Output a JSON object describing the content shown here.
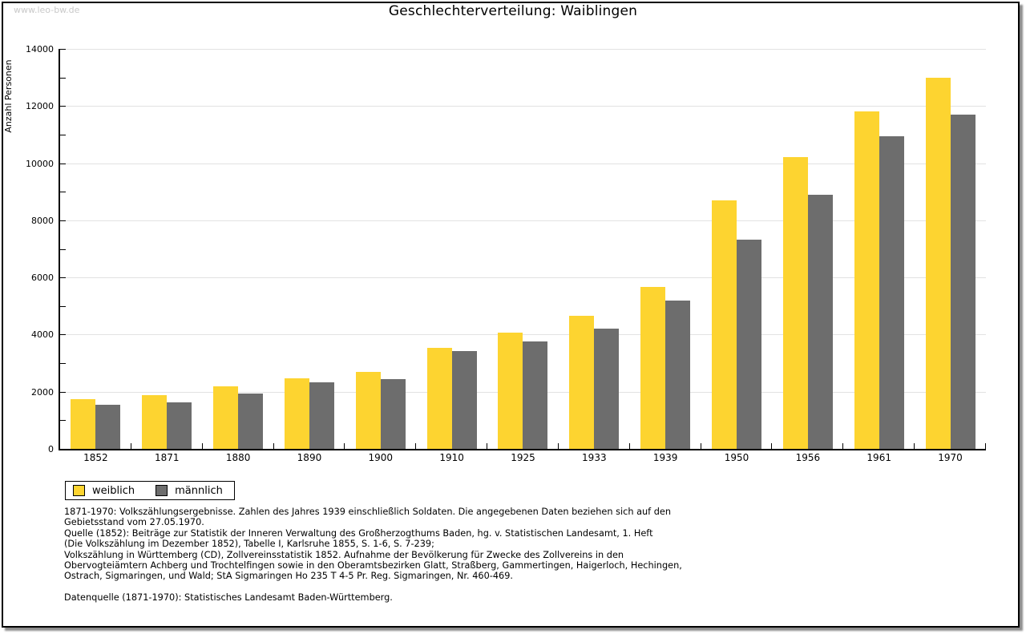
{
  "watermark": "www.leo-bw.de",
  "title": "Geschlechterverteilung: Waiblingen",
  "chart_data": {
    "type": "bar",
    "title": "Geschlechterverteilung: Waiblingen",
    "xlabel": "",
    "ylabel": "Anzahl Personen",
    "ylim": [
      0,
      14000
    ],
    "ytick_step": 2000,
    "yminor_step": 1000,
    "grid": true,
    "legend_position": "bottom-left",
    "categories": [
      "1852",
      "1871",
      "1880",
      "1890",
      "1900",
      "1910",
      "1925",
      "1933",
      "1939",
      "1950",
      "1956",
      "1961",
      "1970"
    ],
    "series": [
      {
        "name": "weiblich",
        "color": "#FDD430",
        "values": [
          1730,
          1880,
          2180,
          2470,
          2700,
          3540,
          4060,
          4650,
          5680,
          8700,
          10200,
          11800,
          13000
        ]
      },
      {
        "name": "männlich",
        "color": "#6D6D6D",
        "values": [
          1550,
          1640,
          1940,
          2320,
          2440,
          3420,
          3750,
          4220,
          5180,
          7330,
          8900,
          10950,
          11700
        ]
      }
    ]
  },
  "footnote_lines": [
    "1871-1970: Volkszählungsergebnisse. Zahlen des Jahres 1939 einschließlich Soldaten. Die angegebenen Daten beziehen sich auf den",
    "Gebietsstand vom 27.05.1970.",
    "Quelle (1852): Beiträge zur Statistik der Inneren Verwaltung des Großherzogthums Baden, hg. v. Statistischen Landesamt, 1. Heft",
    "(Die Volkszählung im Dezember 1852), Tabelle I, Karlsruhe 1855, S. 1-6, S. 7-239;",
    "Volkszählung in Württemberg (CD), Zollvereinsstatistik 1852. Aufnahme der Bevölkerung für Zwecke des Zollvereins in den",
    "Obervogteiämtern Achberg und Trochtelfingen sowie in den Oberamtsbezirken Glatt, Straßberg, Gammertingen, Haigerloch, Hechingen,",
    "Ostrach, Sigmaringen, und Wald; StA Sigmaringen Ho 235 T 4-5 Pr. Reg. Sigmaringen, Nr. 460-469."
  ],
  "source_line": "Datenquelle (1871-1970): Statistisches Landesamt Baden-Württemberg."
}
